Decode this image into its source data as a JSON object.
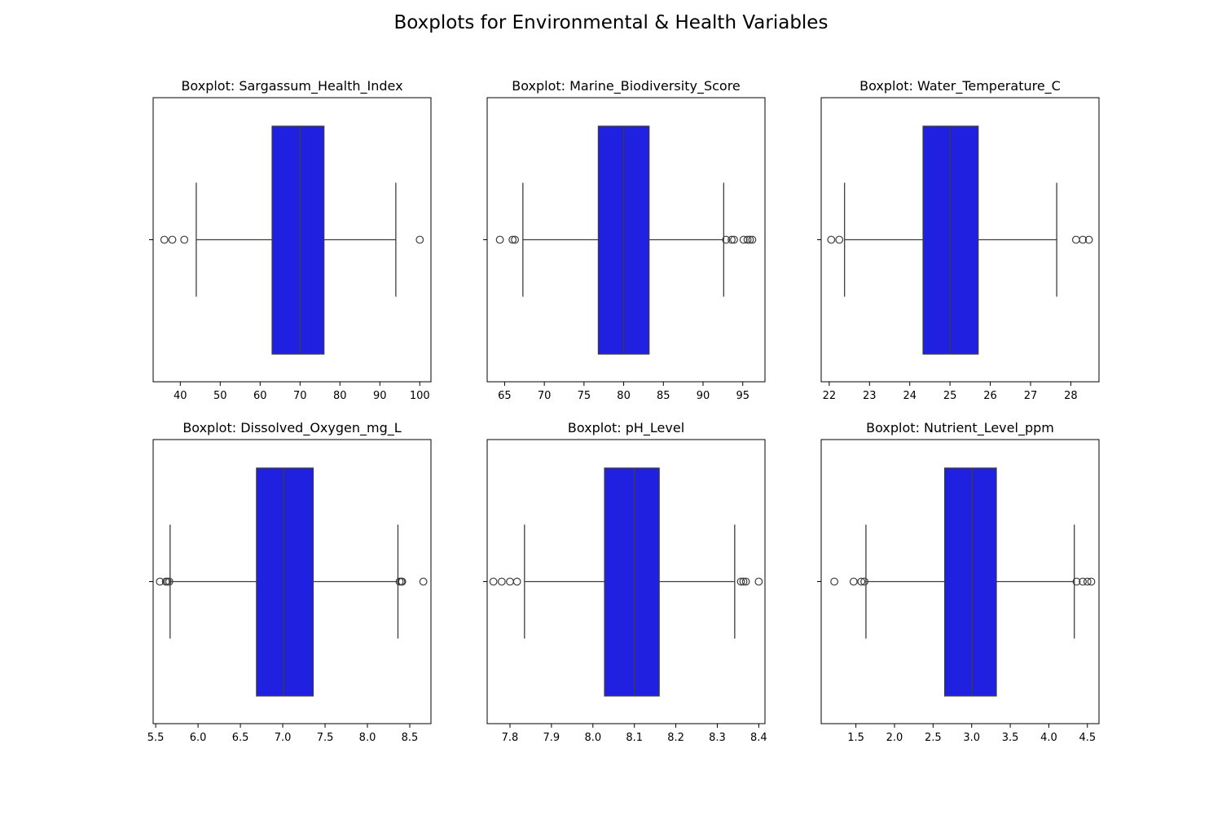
{
  "figure": {
    "title": "Boxplots for Environmental & Health Variables"
  },
  "style": {
    "box_color": "#2020e0",
    "line_color": "#3d3d3d",
    "flier_color": "#3d3d3d"
  },
  "chart_data": [
    {
      "type": "boxplot",
      "title": "Boxplot: Sargassum_Health_Index",
      "orientation": "horizontal",
      "xlim": [
        33.2,
        102.8
      ],
      "ticks": [
        40,
        50,
        60,
        70,
        80,
        90,
        100
      ],
      "tick_labels": [
        "40",
        "50",
        "60",
        "70",
        "80",
        "90",
        "100"
      ],
      "whisker_low": 44,
      "q1": 63,
      "median": 70,
      "q3": 76,
      "whisker_high": 94,
      "outliers": [
        36,
        38,
        41,
        100
      ]
    },
    {
      "type": "boxplot",
      "title": "Boxplot: Marine_Biodiversity_Score",
      "orientation": "horizontal",
      "xlim": [
        62.8,
        97.8
      ],
      "ticks": [
        65,
        70,
        75,
        80,
        85,
        90,
        95
      ],
      "tick_labels": [
        "65",
        "70",
        "75",
        "80",
        "85",
        "90",
        "95"
      ],
      "whisker_low": 67.3,
      "q1": 76.8,
      "median": 80.0,
      "q3": 83.2,
      "whisker_high": 92.6,
      "outliers": [
        64.4,
        66.0,
        66.3,
        92.9,
        93.6,
        93.9,
        95.1,
        95.6,
        95.9,
        96.2
      ]
    },
    {
      "type": "boxplot",
      "title": "Boxplot: Water_Temperature_C",
      "orientation": "horizontal",
      "xlim": [
        21.8,
        28.7
      ],
      "ticks": [
        22,
        23,
        24,
        25,
        26,
        27,
        28
      ],
      "tick_labels": [
        "22",
        "23",
        "24",
        "25",
        "26",
        "27",
        "28"
      ],
      "whisker_low": 22.38,
      "q1": 24.33,
      "median": 25.0,
      "q3": 25.7,
      "whisker_high": 27.65,
      "outliers": [
        22.05,
        22.25,
        28.13,
        28.3,
        28.45
      ]
    },
    {
      "type": "boxplot",
      "title": "Boxplot: Dissolved_Oxygen_mg_L",
      "orientation": "horizontal",
      "xlim": [
        5.47,
        8.75
      ],
      "ticks": [
        5.5,
        6.0,
        6.5,
        7.0,
        7.5,
        8.0,
        8.5
      ],
      "tick_labels": [
        "5.5",
        "6.0",
        "6.5",
        "7.0",
        "7.5",
        "8.0",
        "8.5"
      ],
      "whisker_low": 5.67,
      "q1": 6.69,
      "median": 7.01,
      "q3": 7.36,
      "whisker_high": 8.36,
      "outliers": [
        5.55,
        5.62,
        5.64,
        5.66,
        8.38,
        8.4,
        8.41,
        8.66
      ]
    },
    {
      "type": "boxplot",
      "title": "Boxplot: pH_Level",
      "orientation": "horizontal",
      "xlim": [
        7.745,
        8.415
      ],
      "ticks": [
        7.8,
        7.9,
        8.0,
        8.1,
        8.2,
        8.3,
        8.4
      ],
      "tick_labels": [
        "7.8",
        "7.9",
        "8.0",
        "8.1",
        "8.2",
        "8.3",
        "8.4"
      ],
      "whisker_low": 7.835,
      "q1": 8.028,
      "median": 8.1,
      "q3": 8.16,
      "whisker_high": 8.342,
      "outliers": [
        7.76,
        7.78,
        7.8,
        7.817,
        8.357,
        8.363,
        8.369,
        8.4
      ]
    },
    {
      "type": "boxplot",
      "title": "Boxplot: Nutrient_Level_ppm",
      "orientation": "horizontal",
      "xlim": [
        1.05,
        4.65
      ],
      "ticks": [
        1.5,
        2.0,
        2.5,
        3.0,
        3.5,
        4.0,
        4.5
      ],
      "tick_labels": [
        "1.5",
        "2.0",
        "2.5",
        "3.0",
        "3.5",
        "4.0",
        "4.5"
      ],
      "whisker_low": 1.63,
      "q1": 2.65,
      "median": 3.0,
      "q3": 3.32,
      "whisker_high": 4.33,
      "outliers": [
        1.22,
        1.47,
        1.57,
        1.61,
        4.36,
        4.44,
        4.5,
        4.55
      ]
    }
  ]
}
